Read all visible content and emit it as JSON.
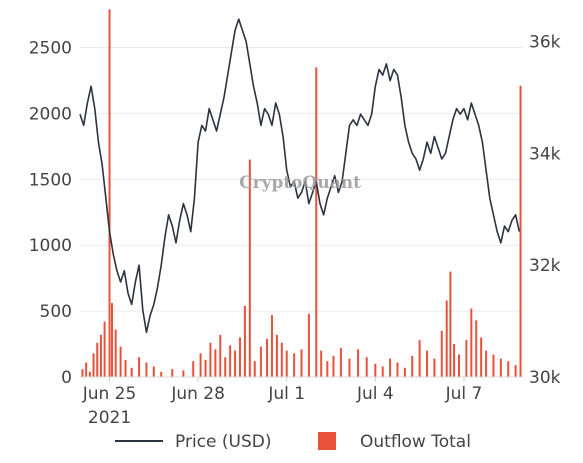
{
  "watermark": "CryptoQuant",
  "legend": {
    "price_label": "Price (USD)",
    "outflow_label": "Outflow Total"
  },
  "colors": {
    "price": "#2b3340",
    "outflow": "#e9523a",
    "grid": "#ebebeb"
  },
  "chart_data": {
    "type": "bar+line",
    "x_range": [
      "2021-06-24 00:00",
      "2021-07-09 00:00"
    ],
    "x_ticks": [
      {
        "date": "2021-06-25",
        "label": "Jun 25",
        "sublabel": "2021"
      },
      {
        "date": "2021-06-28",
        "label": "Jun 28",
        "sublabel": ""
      },
      {
        "date": "2021-07-01",
        "label": "Jul 1",
        "sublabel": ""
      },
      {
        "date": "2021-07-04",
        "label": "Jul 4",
        "sublabel": ""
      },
      {
        "date": "2021-07-07",
        "label": "Jul 7",
        "sublabel": ""
      }
    ],
    "y_left": {
      "range": [
        0,
        2800
      ],
      "ticks": [
        0,
        500,
        1000,
        1500,
        2000,
        2500
      ],
      "tick_labels": [
        "0",
        "500",
        "1000",
        "1500",
        "2000",
        "2500"
      ]
    },
    "y_right": {
      "range": [
        30000,
        36600
      ],
      "ticks": [
        30000,
        32000,
        34000,
        36000
      ],
      "tick_labels": [
        "30k",
        "32k",
        "34k",
        "36k"
      ]
    },
    "series": [
      {
        "name": "Price (USD)",
        "type": "line",
        "axis": "right",
        "points": [
          [
            "2021-06-24 00:00",
            34700
          ],
          [
            "2021-06-24 03:00",
            34500
          ],
          [
            "2021-06-24 06:00",
            34900
          ],
          [
            "2021-06-24 09:00",
            35200
          ],
          [
            "2021-06-24 12:00",
            34800
          ],
          [
            "2021-06-24 15:00",
            34200
          ],
          [
            "2021-06-24 18:00",
            33800
          ],
          [
            "2021-06-24 21:00",
            33200
          ],
          [
            "2021-06-25 00:00",
            32600
          ],
          [
            "2021-06-25 03:00",
            32200
          ],
          [
            "2021-06-25 06:00",
            31900
          ],
          [
            "2021-06-25 09:00",
            31700
          ],
          [
            "2021-06-25 12:00",
            31900
          ],
          [
            "2021-06-25 15:00",
            31500
          ],
          [
            "2021-06-25 18:00",
            31300
          ],
          [
            "2021-06-25 21:00",
            31700
          ],
          [
            "2021-06-26 00:00",
            32000
          ],
          [
            "2021-06-26 03:00",
            31200
          ],
          [
            "2021-06-26 06:00",
            30800
          ],
          [
            "2021-06-26 09:00",
            31100
          ],
          [
            "2021-06-26 12:00",
            31300
          ],
          [
            "2021-06-26 15:00",
            31600
          ],
          [
            "2021-06-26 18:00",
            32000
          ],
          [
            "2021-06-26 21:00",
            32500
          ],
          [
            "2021-06-27 00:00",
            32900
          ],
          [
            "2021-06-27 03:00",
            32700
          ],
          [
            "2021-06-27 06:00",
            32400
          ],
          [
            "2021-06-27 09:00",
            32800
          ],
          [
            "2021-06-27 12:00",
            33100
          ],
          [
            "2021-06-27 15:00",
            32900
          ],
          [
            "2021-06-27 18:00",
            32600
          ],
          [
            "2021-06-27 21:00",
            33200
          ],
          [
            "2021-06-28 00:00",
            34200
          ],
          [
            "2021-06-28 03:00",
            34500
          ],
          [
            "2021-06-28 06:00",
            34400
          ],
          [
            "2021-06-28 09:00",
            34800
          ],
          [
            "2021-06-28 12:00",
            34600
          ],
          [
            "2021-06-28 15:00",
            34400
          ],
          [
            "2021-06-28 18:00",
            34700
          ],
          [
            "2021-06-28 21:00",
            35000
          ],
          [
            "2021-06-29 00:00",
            35400
          ],
          [
            "2021-06-29 03:00",
            35800
          ],
          [
            "2021-06-29 06:00",
            36200
          ],
          [
            "2021-06-29 09:00",
            36400
          ],
          [
            "2021-06-29 12:00",
            36200
          ],
          [
            "2021-06-29 15:00",
            36000
          ],
          [
            "2021-06-29 18:00",
            35600
          ],
          [
            "2021-06-29 21:00",
            35200
          ],
          [
            "2021-06-30 00:00",
            34900
          ],
          [
            "2021-06-30 03:00",
            34500
          ],
          [
            "2021-06-30 06:00",
            34800
          ],
          [
            "2021-06-30 09:00",
            34700
          ],
          [
            "2021-06-30 12:00",
            34500
          ],
          [
            "2021-06-30 15:00",
            34900
          ],
          [
            "2021-06-30 18:00",
            34700
          ],
          [
            "2021-06-30 21:00",
            34300
          ],
          [
            "2021-07-01 00:00",
            33700
          ],
          [
            "2021-07-01 03:00",
            33400
          ],
          [
            "2021-07-01 06:00",
            33500
          ],
          [
            "2021-07-01 09:00",
            33200
          ],
          [
            "2021-07-01 12:00",
            33300
          ],
          [
            "2021-07-01 15:00",
            33500
          ],
          [
            "2021-07-01 18:00",
            33100
          ],
          [
            "2021-07-01 21:00",
            33300
          ],
          [
            "2021-07-02 00:00",
            33500
          ],
          [
            "2021-07-02 03:00",
            33100
          ],
          [
            "2021-07-02 06:00",
            32900
          ],
          [
            "2021-07-02 09:00",
            33200
          ],
          [
            "2021-07-02 12:00",
            33400
          ],
          [
            "2021-07-02 15:00",
            33600
          ],
          [
            "2021-07-02 18:00",
            33300
          ],
          [
            "2021-07-02 21:00",
            33500
          ],
          [
            "2021-07-03 00:00",
            34000
          ],
          [
            "2021-07-03 03:00",
            34500
          ],
          [
            "2021-07-03 06:00",
            34600
          ],
          [
            "2021-07-03 09:00",
            34500
          ],
          [
            "2021-07-03 12:00",
            34700
          ],
          [
            "2021-07-03 15:00",
            34600
          ],
          [
            "2021-07-03 18:00",
            34500
          ],
          [
            "2021-07-03 21:00",
            34700
          ],
          [
            "2021-07-04 00:00",
            35200
          ],
          [
            "2021-07-04 03:00",
            35500
          ],
          [
            "2021-07-04 06:00",
            35400
          ],
          [
            "2021-07-04 09:00",
            35600
          ],
          [
            "2021-07-04 12:00",
            35300
          ],
          [
            "2021-07-04 15:00",
            35500
          ],
          [
            "2021-07-04 18:00",
            35400
          ],
          [
            "2021-07-04 21:00",
            35000
          ],
          [
            "2021-07-05 00:00",
            34500
          ],
          [
            "2021-07-05 03:00",
            34200
          ],
          [
            "2021-07-05 06:00",
            34000
          ],
          [
            "2021-07-05 09:00",
            33900
          ],
          [
            "2021-07-05 12:00",
            33700
          ],
          [
            "2021-07-05 15:00",
            33900
          ],
          [
            "2021-07-05 18:00",
            34200
          ],
          [
            "2021-07-05 21:00",
            34000
          ],
          [
            "2021-07-06 00:00",
            34300
          ],
          [
            "2021-07-06 03:00",
            34100
          ],
          [
            "2021-07-06 06:00",
            33900
          ],
          [
            "2021-07-06 09:00",
            34000
          ],
          [
            "2021-07-06 12:00",
            34300
          ],
          [
            "2021-07-06 15:00",
            34600
          ],
          [
            "2021-07-06 18:00",
            34800
          ],
          [
            "2021-07-06 21:00",
            34700
          ],
          [
            "2021-07-07 00:00",
            34800
          ],
          [
            "2021-07-07 03:00",
            34600
          ],
          [
            "2021-07-07 06:00",
            34900
          ],
          [
            "2021-07-07 09:00",
            34700
          ],
          [
            "2021-07-07 12:00",
            34500
          ],
          [
            "2021-07-07 15:00",
            34200
          ],
          [
            "2021-07-07 18:00",
            33700
          ],
          [
            "2021-07-07 21:00",
            33200
          ],
          [
            "2021-07-08 00:00",
            32900
          ],
          [
            "2021-07-08 03:00",
            32600
          ],
          [
            "2021-07-08 06:00",
            32400
          ],
          [
            "2021-07-08 09:00",
            32700
          ],
          [
            "2021-07-08 12:00",
            32600
          ],
          [
            "2021-07-08 15:00",
            32800
          ],
          [
            "2021-07-08 18:00",
            32900
          ],
          [
            "2021-07-08 21:00",
            32600
          ]
        ]
      },
      {
        "name": "Outflow Total",
        "type": "bar",
        "axis": "left",
        "points": [
          [
            "2021-06-24 02:00",
            60
          ],
          [
            "2021-06-24 05:00",
            110
          ],
          [
            "2021-06-24 08:00",
            40
          ],
          [
            "2021-06-24 11:00",
            180
          ],
          [
            "2021-06-24 14:00",
            260
          ],
          [
            "2021-06-24 17:00",
            320
          ],
          [
            "2021-06-24 20:00",
            420
          ],
          [
            "2021-06-25 00:00",
            2790
          ],
          [
            "2021-06-25 02:00",
            560
          ],
          [
            "2021-06-25 05:00",
            360
          ],
          [
            "2021-06-25 09:00",
            230
          ],
          [
            "2021-06-25 13:00",
            130
          ],
          [
            "2021-06-25 18:00",
            70
          ],
          [
            "2021-06-26 00:00",
            150
          ],
          [
            "2021-06-26 06:00",
            110
          ],
          [
            "2021-06-26 12:00",
            80
          ],
          [
            "2021-06-26 18:00",
            40
          ],
          [
            "2021-06-27 03:00",
            60
          ],
          [
            "2021-06-27 12:00",
            50
          ],
          [
            "2021-06-27 20:00",
            120
          ],
          [
            "2021-06-28 02:00",
            180
          ],
          [
            "2021-06-28 06:00",
            130
          ],
          [
            "2021-06-28 10:00",
            260
          ],
          [
            "2021-06-28 14:00",
            210
          ],
          [
            "2021-06-28 18:00",
            320
          ],
          [
            "2021-06-28 22:00",
            150
          ],
          [
            "2021-06-29 02:00",
            240
          ],
          [
            "2021-06-29 06:00",
            200
          ],
          [
            "2021-06-29 10:00",
            300
          ],
          [
            "2021-06-29 14:00",
            540
          ],
          [
            "2021-06-29 18:00",
            1650
          ],
          [
            "2021-06-29 22:00",
            120
          ],
          [
            "2021-06-30 03:00",
            230
          ],
          [
            "2021-06-30 08:00",
            290
          ],
          [
            "2021-06-30 12:00",
            470
          ],
          [
            "2021-06-30 16:00",
            320
          ],
          [
            "2021-06-30 20:00",
            260
          ],
          [
            "2021-07-01 00:00",
            200
          ],
          [
            "2021-07-01 06:00",
            180
          ],
          [
            "2021-07-01 12:00",
            210
          ],
          [
            "2021-07-01 18:00",
            480
          ],
          [
            "2021-07-02 00:00",
            2350
          ],
          [
            "2021-07-02 04:00",
            200
          ],
          [
            "2021-07-02 09:00",
            120
          ],
          [
            "2021-07-02 14:00",
            160
          ],
          [
            "2021-07-02 20:00",
            220
          ],
          [
            "2021-07-03 03:00",
            140
          ],
          [
            "2021-07-03 10:00",
            210
          ],
          [
            "2021-07-03 17:00",
            150
          ],
          [
            "2021-07-04 00:00",
            100
          ],
          [
            "2021-07-04 06:00",
            80
          ],
          [
            "2021-07-04 12:00",
            140
          ],
          [
            "2021-07-04 18:00",
            110
          ],
          [
            "2021-07-05 00:00",
            70
          ],
          [
            "2021-07-05 06:00",
            160
          ],
          [
            "2021-07-05 12:00",
            280
          ],
          [
            "2021-07-05 18:00",
            200
          ],
          [
            "2021-07-06 00:00",
            140
          ],
          [
            "2021-07-06 06:00",
            350
          ],
          [
            "2021-07-06 10:00",
            580
          ],
          [
            "2021-07-06 13:00",
            800
          ],
          [
            "2021-07-06 16:00",
            250
          ],
          [
            "2021-07-06 20:00",
            170
          ],
          [
            "2021-07-07 02:00",
            280
          ],
          [
            "2021-07-07 06:00",
            520
          ],
          [
            "2021-07-07 10:00",
            430
          ],
          [
            "2021-07-07 14:00",
            300
          ],
          [
            "2021-07-07 18:00",
            200
          ],
          [
            "2021-07-08 00:00",
            170
          ],
          [
            "2021-07-08 06:00",
            140
          ],
          [
            "2021-07-08 12:00",
            120
          ],
          [
            "2021-07-08 18:00",
            90
          ],
          [
            "2021-07-08 22:00",
            2210
          ]
        ]
      }
    ],
    "grid": true,
    "legend_position": "bottom"
  }
}
